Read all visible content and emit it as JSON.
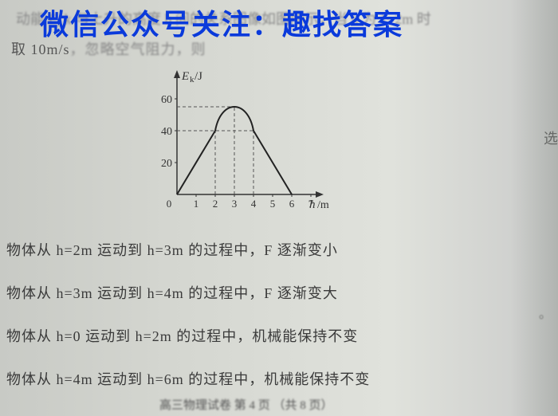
{
  "watermark": "微信公众号关注：趣找答案",
  "bgText1": "动能 E_k 与上升的高度 h 间的关系图像如图所示，当 h 为 1~2m 时",
  "line2_a": "取 10m/s",
  "line2_b": "，忽略空气阻力，则",
  "chart": {
    "type": "line",
    "xlabel": "h/m",
    "ylabel": "E_k/J",
    "xlim": [
      0,
      7
    ],
    "ylim": [
      0,
      70
    ],
    "xtick_step": 1,
    "yticks": [
      20,
      40,
      60
    ],
    "background_color": "transparent",
    "axis_color": "#333333",
    "grid_dash_color": "#555555",
    "curve_color": "#222222",
    "curve_width": 2,
    "points_x": [
      0,
      1,
      2,
      2.5,
      3,
      4,
      5,
      6
    ],
    "points_y": [
      0,
      20,
      40,
      55,
      55,
      40,
      20,
      0
    ],
    "dashed_verticals_x": [
      2,
      3,
      4
    ],
    "dashed_horizontals_y": [
      40,
      55
    ]
  },
  "options": [
    "物体从 h=2m 运动到 h=3m 的过程中，F 逐渐变小",
    "物体从 h=3m 运动到 h=4m 的过程中，F 逐渐变大",
    "物体从 h=0 运动到 h=2m 的过程中，机械能保持不变",
    "物体从 h=4m 运动到 h=6m 的过程中，机械能保持不变"
  ],
  "footer": "高三物理试卷  第 4 页 （共 8 页）",
  "sideChar": "选",
  "sideChar2": "。"
}
